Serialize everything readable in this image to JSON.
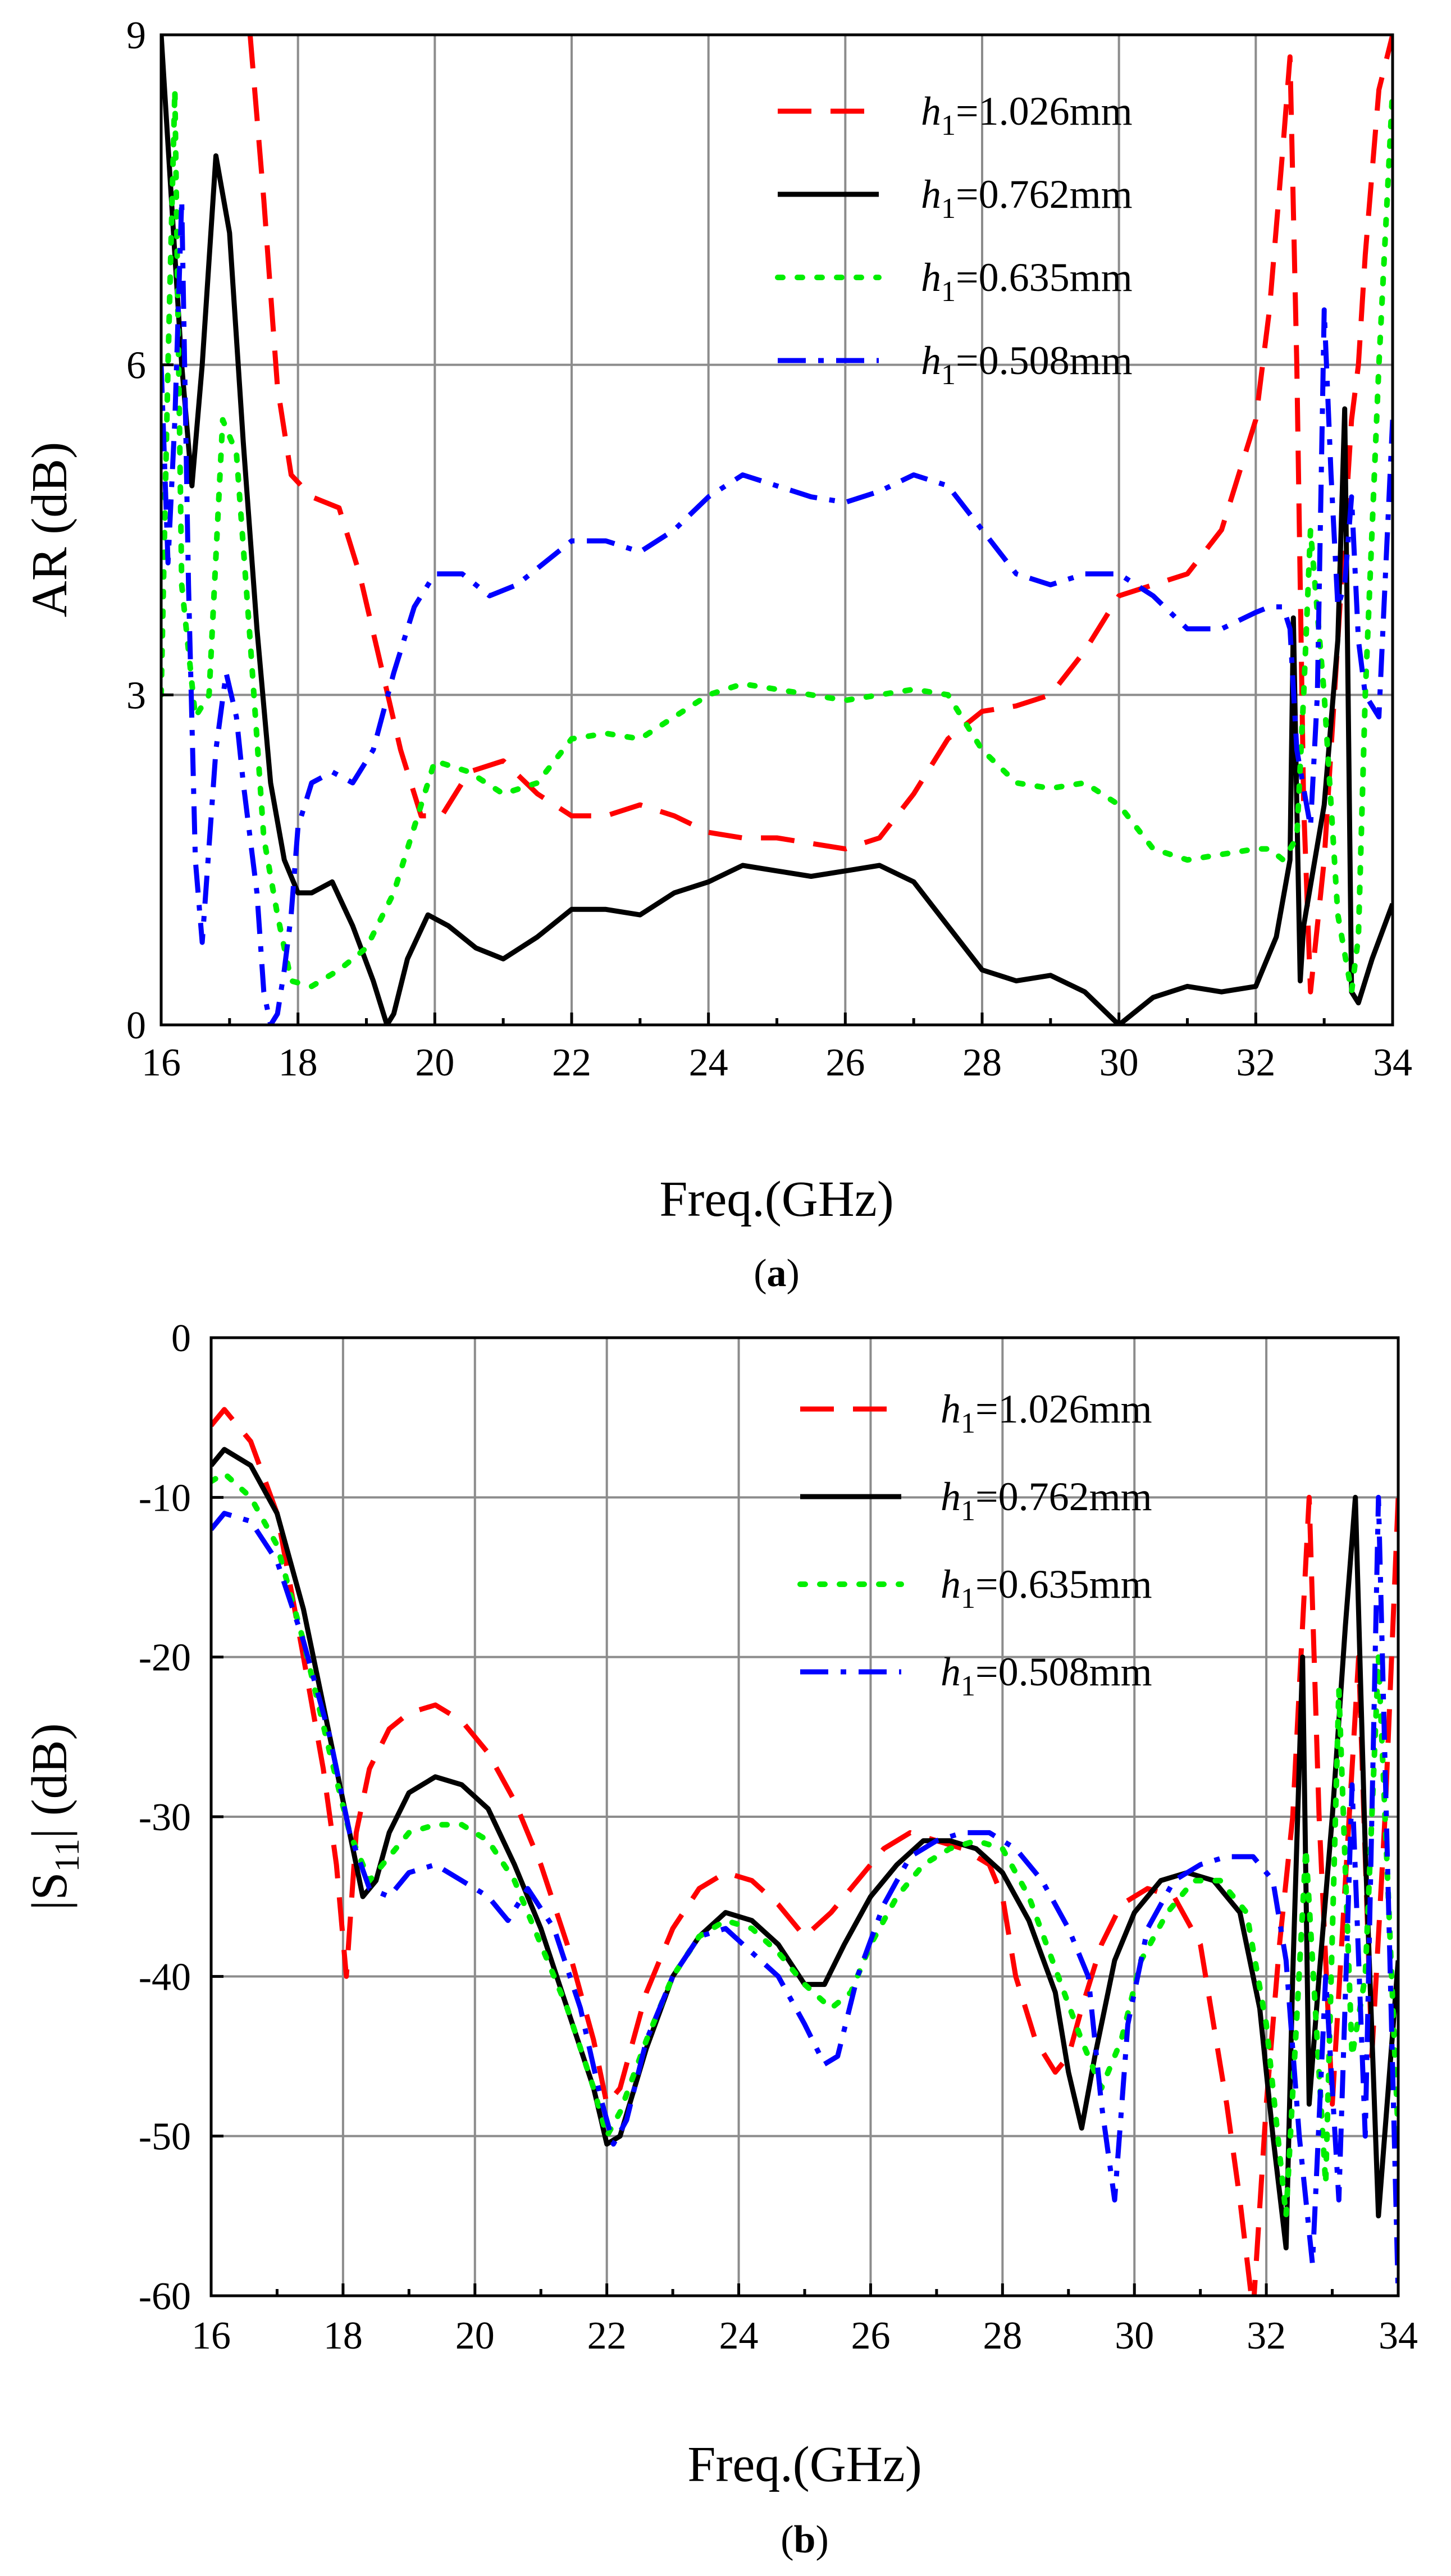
{
  "colors": {
    "h1_1026": "#ff0000",
    "h1_0762": "#000000",
    "h1_0635": "#00ee00",
    "h1_0508": "#0000ff",
    "grid": "#8c8c8c"
  },
  "chart_data": [
    {
      "type": "line",
      "caption": "a",
      "xlabel": "Freq.(GHz)",
      "ylabel": "AR (dB)",
      "xlim": [
        16,
        34
      ],
      "ylim": [
        0,
        9
      ],
      "xticks": [
        "16",
        "18",
        "20",
        "22",
        "24",
        "26",
        "28",
        "30",
        "32",
        "34"
      ],
      "yticks": [
        "0",
        "3",
        "6",
        "9"
      ],
      "grid": true,
      "legend_position": "top-right",
      "series": [
        {
          "name": "h1=1.026mm",
          "legend": {
            "var": "h",
            "sub": "1",
            "rest": "=1.026mm"
          },
          "color": "#ff0000",
          "style": "dash",
          "x": [
            17.3,
            17.5,
            17.7,
            17.9,
            18.2,
            18.6,
            18.9,
            19.2,
            19.5,
            19.8,
            20.1,
            20.5,
            21.0,
            21.5,
            22.0,
            22.5,
            23.0,
            23.5,
            24.0,
            24.5,
            25.0,
            25.5,
            26.0,
            26.5,
            27.0,
            27.5,
            28.0,
            28.5,
            29.0,
            29.5,
            30.0,
            30.5,
            31.0,
            31.5,
            32.0,
            32.2,
            32.4,
            32.5,
            32.6,
            32.7,
            32.8,
            33.0,
            33.2,
            33.4,
            33.5,
            33.6,
            33.8,
            34.0
          ],
          "y": [
            9.0,
            7.5,
            5.8,
            5.0,
            4.8,
            4.7,
            4.1,
            3.3,
            2.5,
            1.9,
            1.9,
            2.3,
            2.4,
            2.1,
            1.9,
            1.9,
            2.0,
            1.9,
            1.75,
            1.7,
            1.7,
            1.65,
            1.6,
            1.7,
            2.1,
            2.6,
            2.85,
            2.9,
            3.0,
            3.4,
            3.9,
            4.0,
            4.1,
            4.5,
            5.5,
            6.5,
            8.0,
            8.8,
            6.0,
            2.0,
            0.3,
            1.5,
            3.5,
            5.5,
            6.0,
            7.0,
            8.5,
            9.0
          ]
        },
        {
          "name": "h1=0.762mm",
          "legend": {
            "var": "h",
            "sub": "1",
            "rest": "=0.762mm"
          },
          "color": "#000000",
          "style": "solid",
          "x": [
            16.0,
            16.1,
            16.2,
            16.3,
            16.45,
            16.6,
            16.8,
            17.0,
            17.2,
            17.4,
            17.6,
            17.8,
            18.0,
            18.2,
            18.5,
            18.8,
            19.1,
            19.3,
            19.4,
            19.6,
            19.9,
            20.2,
            20.6,
            21.0,
            21.5,
            22.0,
            22.5,
            23.0,
            23.5,
            24.0,
            24.5,
            25.0,
            25.5,
            26.0,
            26.5,
            27.0,
            27.5,
            28.0,
            28.5,
            29.0,
            29.5,
            30.0,
            30.5,
            31.0,
            31.5,
            32.0,
            32.3,
            32.5,
            32.55,
            32.6,
            32.65,
            32.7,
            33.0,
            33.2,
            33.3,
            33.35,
            33.4,
            33.5,
            33.7,
            34.0
          ],
          "y": [
            9.0,
            8.0,
            7.0,
            6.0,
            4.9,
            6.0,
            7.9,
            7.2,
            5.3,
            3.6,
            2.2,
            1.5,
            1.2,
            1.2,
            1.3,
            0.9,
            0.4,
            0.0,
            0.1,
            0.6,
            1.0,
            0.9,
            0.7,
            0.6,
            0.8,
            1.05,
            1.05,
            1.0,
            1.2,
            1.3,
            1.45,
            1.4,
            1.35,
            1.4,
            1.45,
            1.3,
            0.9,
            0.5,
            0.4,
            0.45,
            0.3,
            0.0,
            0.25,
            0.35,
            0.3,
            0.35,
            0.8,
            1.5,
            3.7,
            2.0,
            0.4,
            0.9,
            2.0,
            3.5,
            5.6,
            3.0,
            0.3,
            0.2,
            0.6,
            1.1
          ]
        },
        {
          "name": "h1=0.635mm",
          "legend": {
            "var": "h",
            "sub": "1",
            "rest": "=0.635mm"
          },
          "color": "#00ee00",
          "style": "dot",
          "x": [
            16.0,
            16.1,
            16.2,
            16.3,
            16.5,
            16.7,
            16.9,
            17.1,
            17.3,
            17.5,
            17.7,
            17.9,
            18.2,
            18.6,
            19.0,
            19.4,
            19.8,
            20.0,
            20.5,
            21.0,
            21.5,
            22.0,
            22.5,
            23.0,
            23.5,
            24.0,
            24.5,
            25.0,
            25.5,
            26.0,
            26.5,
            27.0,
            27.5,
            28.0,
            28.5,
            29.0,
            29.5,
            30.0,
            30.5,
            31.0,
            31.5,
            32.0,
            32.2,
            32.4,
            32.6,
            32.7,
            32.8,
            33.0,
            33.2,
            33.4,
            33.5,
            33.6,
            33.8,
            34.0
          ],
          "y": [
            3.0,
            6.0,
            8.5,
            4.0,
            2.8,
            3.0,
            5.5,
            5.2,
            3.5,
            1.7,
            1.0,
            0.4,
            0.35,
            0.5,
            0.7,
            1.2,
            2.0,
            2.4,
            2.3,
            2.1,
            2.2,
            2.6,
            2.65,
            2.6,
            2.8,
            3.0,
            3.1,
            3.05,
            3.0,
            2.95,
            3.0,
            3.05,
            3.0,
            2.5,
            2.2,
            2.15,
            2.2,
            2.0,
            1.6,
            1.5,
            1.55,
            1.6,
            1.6,
            1.5,
            1.7,
            3.0,
            4.5,
            3.0,
            1.0,
            0.3,
            0.8,
            3.0,
            6.0,
            8.5
          ]
        },
        {
          "name": "h1=0.508mm",
          "legend": {
            "var": "h",
            "sub": "1",
            "rest": "=0.508mm"
          },
          "color": "#0000ff",
          "style": "dashdot",
          "x": [
            16.0,
            16.1,
            16.2,
            16.3,
            16.4,
            16.5,
            16.6,
            16.8,
            16.95,
            17.1,
            17.2,
            17.4,
            17.5,
            17.6,
            17.7,
            17.8,
            17.9,
            18.0,
            18.2,
            18.5,
            18.8,
            19.1,
            19.4,
            19.7,
            20.0,
            20.4,
            20.8,
            21.2,
            21.6,
            22.0,
            22.5,
            23.0,
            23.5,
            24.0,
            24.5,
            25.0,
            25.5,
            26.0,
            26.5,
            27.0,
            27.5,
            28.0,
            28.5,
            29.0,
            29.5,
            30.0,
            30.5,
            31.0,
            31.5,
            32.0,
            32.2,
            32.4,
            32.5,
            32.6,
            32.8,
            32.9,
            33.0,
            33.1,
            33.2,
            33.3,
            33.4,
            33.5,
            33.6,
            33.8,
            34.0
          ],
          "y": [
            6.0,
            4.2,
            5.5,
            7.5,
            4.0,
            1.5,
            0.75,
            2.5,
            3.2,
            2.8,
            2.2,
            1.2,
            0.3,
            0.0,
            0.1,
            0.5,
            1.0,
            1.8,
            2.2,
            2.3,
            2.2,
            2.5,
            3.2,
            3.8,
            4.1,
            4.1,
            3.9,
            4.0,
            4.2,
            4.4,
            4.4,
            4.3,
            4.5,
            4.8,
            5.0,
            4.9,
            4.8,
            4.75,
            4.85,
            5.0,
            4.9,
            4.5,
            4.1,
            4.0,
            4.1,
            4.1,
            3.9,
            3.6,
            3.6,
            3.75,
            3.8,
            3.8,
            3.6,
            2.5,
            1.8,
            3.0,
            6.5,
            5.0,
            3.8,
            4.0,
            4.8,
            3.5,
            3.0,
            2.8,
            5.5
          ]
        }
      ]
    },
    {
      "type": "line",
      "caption": "b",
      "xlabel": "Freq.(GHz)",
      "ylabel": "|S11| (dB)",
      "ylabel_parts": {
        "pre": "|S",
        "sub": "11",
        "post": "| (dB)"
      },
      "xlim": [
        16,
        34
      ],
      "ylim": [
        -60,
        0
      ],
      "xticks": [
        "16",
        "18",
        "20",
        "22",
        "24",
        "26",
        "28",
        "30",
        "32",
        "34"
      ],
      "yticks": [
        "-60",
        "-50",
        "-40",
        "-30",
        "-20",
        "-10",
        "0"
      ],
      "grid": true,
      "legend_position": "top-right",
      "series": [
        {
          "name": "h1=1.026mm",
          "legend": {
            "var": "h",
            "sub": "1",
            "rest": "=1.026mm"
          },
          "color": "#ff0000",
          "style": "dash",
          "x": [
            16.0,
            16.2,
            16.6,
            17.0,
            17.4,
            17.7,
            17.9,
            18.05,
            18.2,
            18.4,
            18.7,
            19.0,
            19.4,
            19.8,
            20.2,
            20.6,
            21.0,
            21.4,
            21.8,
            22.0,
            22.2,
            22.6,
            23.0,
            23.4,
            23.8,
            24.2,
            24.6,
            25.0,
            25.4,
            25.8,
            26.2,
            26.6,
            27.0,
            27.4,
            27.8,
            28.0,
            28.2,
            28.5,
            28.8,
            29.0,
            29.2,
            29.5,
            29.8,
            30.2,
            30.6,
            31.0,
            31.4,
            31.6,
            31.8,
            32.0,
            32.2,
            32.4,
            32.55,
            32.65,
            32.8,
            33.0,
            33.2,
            33.4,
            33.6,
            33.8,
            34.0
          ],
          "y": [
            -5.5,
            -4.5,
            -6.5,
            -11,
            -20,
            -27,
            -33,
            -40,
            -31,
            -27,
            -24.5,
            -23.5,
            -23,
            -24,
            -26,
            -29,
            -33,
            -38,
            -44,
            -48,
            -47,
            -41,
            -37,
            -34.5,
            -33.5,
            -34,
            -35.5,
            -37.5,
            -36,
            -34,
            -32,
            -31,
            -31.5,
            -32,
            -33,
            -35,
            -40,
            -44,
            -46,
            -45,
            -42,
            -38,
            -35.5,
            -34.5,
            -35,
            -38,
            -48,
            -54,
            -61,
            -48,
            -38,
            -30,
            -18,
            -10,
            -30,
            -48,
            -34,
            -20,
            -45,
            -30,
            -10
          ]
        },
        {
          "name": "h1=0.762mm",
          "legend": {
            "var": "h",
            "sub": "1",
            "rest": "=0.762mm"
          },
          "color": "#000000",
          "style": "solid",
          "x": [
            16.0,
            16.2,
            16.6,
            17.0,
            17.4,
            17.8,
            18.1,
            18.3,
            18.5,
            18.7,
            19.0,
            19.4,
            19.8,
            20.2,
            20.6,
            21.0,
            21.4,
            21.8,
            22.0,
            22.2,
            22.6,
            23.0,
            23.4,
            23.8,
            24.2,
            24.6,
            25.0,
            25.3,
            25.6,
            26.0,
            26.4,
            26.8,
            27.2,
            27.6,
            28.0,
            28.4,
            28.8,
            29.0,
            29.2,
            29.4,
            29.7,
            30.0,
            30.4,
            30.8,
            31.2,
            31.6,
            31.9,
            32.1,
            32.3,
            32.4,
            32.55,
            32.65,
            32.8,
            33.0,
            33.2,
            33.35,
            33.5,
            33.7,
            34.0
          ],
          "y": [
            -8,
            -7,
            -8,
            -11,
            -17,
            -25,
            -31,
            -35,
            -34,
            -31,
            -28.5,
            -27.5,
            -28,
            -29.5,
            -33,
            -37,
            -42,
            -47,
            -50.5,
            -50,
            -44.5,
            -40,
            -37.5,
            -36,
            -36.5,
            -38,
            -40.5,
            -40.5,
            -38,
            -35,
            -33,
            -31.5,
            -31.5,
            -32,
            -33.5,
            -36.5,
            -41,
            -46,
            -49.5,
            -45,
            -39,
            -36,
            -34,
            -33.5,
            -34,
            -36,
            -42,
            -50,
            -57,
            -40,
            -20,
            -48,
            -40,
            -30,
            -18,
            -10,
            -32,
            -55,
            -39
          ]
        },
        {
          "name": "h1=0.635mm",
          "legend": {
            "var": "h",
            "sub": "1",
            "rest": "=0.635mm"
          },
          "color": "#00ee00",
          "style": "dot",
          "x": [
            16.0,
            16.2,
            16.6,
            17.0,
            17.4,
            17.8,
            18.1,
            18.4,
            18.7,
            19.0,
            19.4,
            19.8,
            20.2,
            20.6,
            21.0,
            21.4,
            21.8,
            22.0,
            22.2,
            22.6,
            23.0,
            23.4,
            23.8,
            24.2,
            24.6,
            25.0,
            25.4,
            25.7,
            26.0,
            26.4,
            26.8,
            27.2,
            27.6,
            28.0,
            28.4,
            28.8,
            29.2,
            29.5,
            29.8,
            30.1,
            30.5,
            30.9,
            31.3,
            31.7,
            32.0,
            32.3,
            32.6,
            32.9,
            33.1,
            33.3,
            33.5,
            33.7,
            34.0
          ],
          "y": [
            -9,
            -8.5,
            -10,
            -13,
            -19,
            -26,
            -31,
            -34,
            -32.5,
            -31,
            -30.5,
            -30.5,
            -31.5,
            -34,
            -38,
            -42,
            -47,
            -50,
            -48.5,
            -44,
            -40,
            -37.5,
            -36.5,
            -37,
            -38.5,
            -40.5,
            -42,
            -41,
            -38,
            -35,
            -33,
            -32,
            -31.5,
            -32,
            -35,
            -39.5,
            -44,
            -47,
            -44,
            -39,
            -36,
            -34,
            -34,
            -36,
            -43,
            -55,
            -32,
            -53,
            -22,
            -45,
            -40,
            -20,
            -50
          ]
        },
        {
          "name": "h1=0.508mm",
          "legend": {
            "var": "h",
            "sub": "1",
            "rest": "=0.508mm"
          },
          "color": "#0000ff",
          "style": "dashdot",
          "x": [
            16.0,
            16.2,
            16.6,
            17.0,
            17.4,
            17.8,
            18.1,
            18.4,
            18.7,
            19.0,
            19.4,
            19.8,
            20.2,
            20.5,
            20.8,
            21.2,
            21.6,
            21.9,
            22.1,
            22.3,
            22.6,
            23.0,
            23.4,
            23.8,
            24.2,
            24.6,
            25.0,
            25.3,
            25.5,
            25.8,
            26.2,
            26.6,
            27.0,
            27.4,
            27.8,
            28.2,
            28.6,
            29.0,
            29.3,
            29.5,
            29.7,
            29.9,
            30.2,
            30.6,
            31.0,
            31.4,
            31.8,
            32.1,
            32.3,
            32.5,
            32.7,
            32.9,
            33.1,
            33.3,
            33.5,
            33.7,
            34.0
          ],
          "y": [
            -12,
            -11,
            -11.5,
            -14,
            -19,
            -25,
            -31,
            -34.5,
            -35,
            -33.5,
            -33,
            -34,
            -35,
            -36.5,
            -34.5,
            -37,
            -42,
            -47.5,
            -50.5,
            -49,
            -44,
            -40,
            -37.5,
            -37,
            -38.5,
            -40,
            -43,
            -45.5,
            -45,
            -40,
            -35.5,
            -32.5,
            -31.5,
            -31,
            -31,
            -32,
            -34,
            -37,
            -40,
            -48,
            -54,
            -43,
            -37,
            -34,
            -33,
            -32.5,
            -32.5,
            -34,
            -39,
            -50,
            -58,
            -40,
            -54,
            -28,
            -50,
            -10,
            -60
          ]
        }
      ]
    }
  ]
}
